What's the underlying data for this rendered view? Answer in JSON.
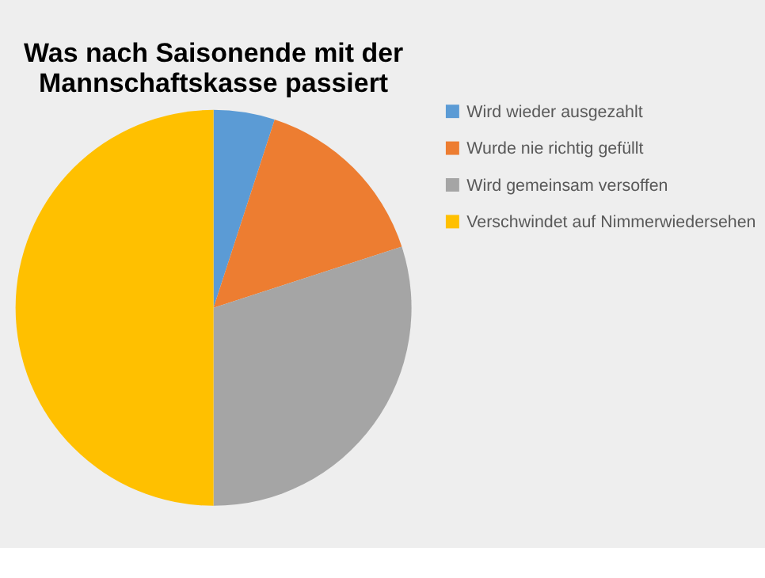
{
  "chart_data": {
    "type": "pie",
    "title": [
      "Was nach Saisonende mit der",
      "Mannschaftskasse passiert"
    ],
    "categories": [
      "Wird wieder ausgezahlt",
      "Wurde nie richtig gefüllt",
      "Wird gemeinsam versoffen",
      "Verschwindet auf Nimmerwiedersehen"
    ],
    "values": [
      5,
      15,
      30,
      50
    ],
    "colors": [
      "#5b9bd5",
      "#ed7d31",
      "#a5a5a5",
      "#ffc000"
    ],
    "legend": "right"
  }
}
